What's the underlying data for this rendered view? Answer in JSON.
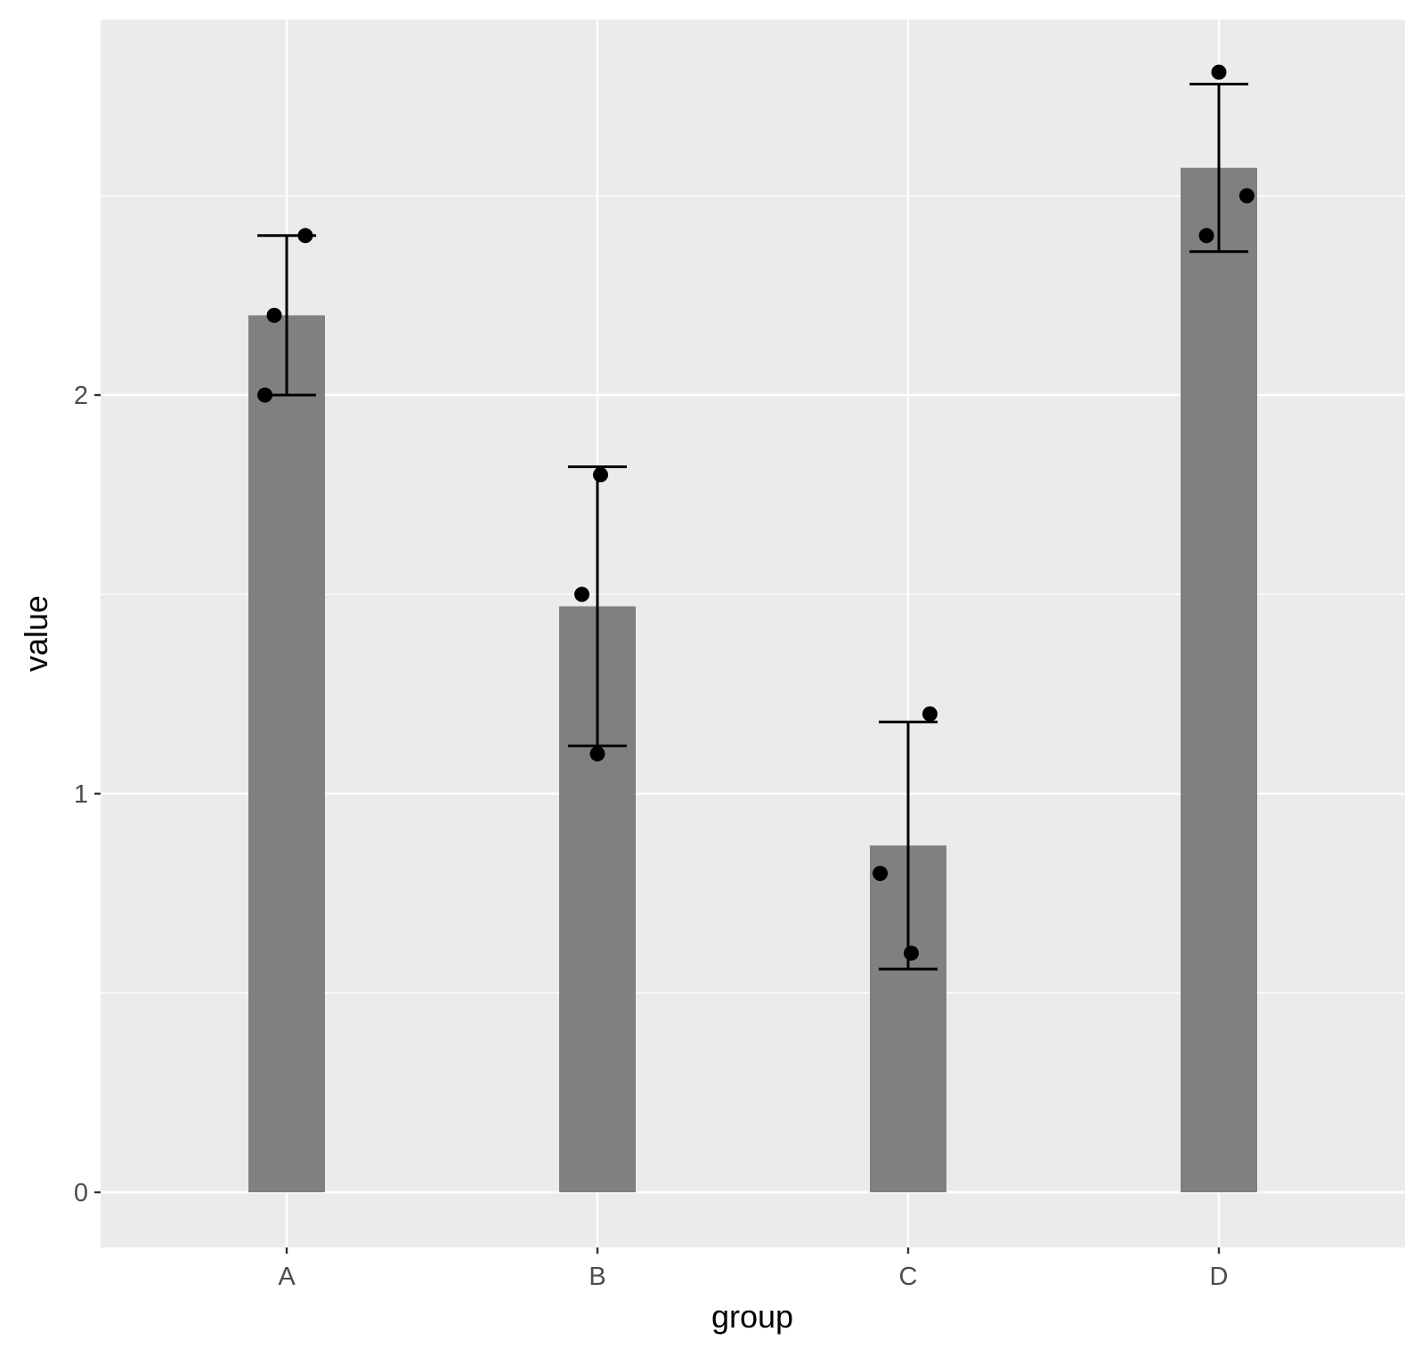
{
  "chart_data": {
    "type": "bar",
    "xlabel": "group",
    "ylabel": "value",
    "categories": [
      "A",
      "B",
      "C",
      "D"
    ],
    "values": [
      2.2,
      1.47,
      0.87,
      2.57
    ],
    "error_bars": [
      {
        "lower": 2.0,
        "upper": 2.4
      },
      {
        "lower": 1.12,
        "upper": 1.82
      },
      {
        "lower": 0.56,
        "upper": 1.18
      },
      {
        "lower": 2.36,
        "upper": 2.78
      }
    ],
    "points": [
      {
        "category": "A",
        "jitter": -0.07,
        "value": 2.0
      },
      {
        "category": "A",
        "jitter": -0.04,
        "value": 2.2
      },
      {
        "category": "A",
        "jitter": 0.06,
        "value": 2.4
      },
      {
        "category": "B",
        "jitter": -0.05,
        "value": 1.5
      },
      {
        "category": "B",
        "jitter": 0.0,
        "value": 1.1
      },
      {
        "category": "B",
        "jitter": 0.01,
        "value": 1.8
      },
      {
        "category": "C",
        "jitter": -0.09,
        "value": 0.8
      },
      {
        "category": "C",
        "jitter": 0.01,
        "value": 0.6
      },
      {
        "category": "C",
        "jitter": 0.07,
        "value": 1.2
      },
      {
        "category": "D",
        "jitter": -0.04,
        "value": 2.4
      },
      {
        "category": "D",
        "jitter": 0.0,
        "value": 2.81
      },
      {
        "category": "D",
        "jitter": 0.09,
        "value": 2.5
      }
    ],
    "yticks": [
      0,
      1,
      2
    ],
    "ylim": [
      -0.14,
      2.95
    ],
    "grid": true,
    "colors": {
      "panel": "#EBEBEB",
      "grid": "#FFFFFF",
      "bar": "#808080",
      "point": "#000000",
      "errorbar": "#000000",
      "tick_text": "#4D4D4D"
    }
  }
}
